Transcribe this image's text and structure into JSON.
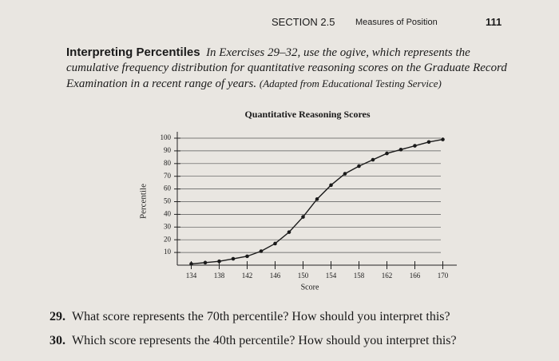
{
  "header": {
    "section": "SECTION 2.5",
    "topic": "Measures of Position",
    "page": "111"
  },
  "intro": {
    "title": "Interpreting Percentiles",
    "text": "In Exercises 29–32, use the ogive, which represents the cumulative frequency distribution for quantitative reasoning scores on the Graduate Record Examination in a recent range of years.",
    "source": "(Adapted from Educational Testing Service)"
  },
  "chart_data": {
    "type": "line",
    "title": "Quantitative Reasoning Scores",
    "x_label": "Score",
    "y_label": "Percentile",
    "x": [
      134,
      136,
      138,
      140,
      142,
      144,
      146,
      148,
      150,
      152,
      154,
      156,
      158,
      160,
      162,
      164,
      166,
      168,
      170
    ],
    "series": [
      {
        "name": "Percentile",
        "color": "#1a1a1a",
        "values": [
          1,
          2,
          3,
          5,
          7,
          11,
          17,
          26,
          38,
          52,
          63,
          72,
          78,
          83,
          88,
          91,
          94,
          97,
          99
        ]
      }
    ],
    "xlim": [
      132,
      172
    ],
    "xticks": [
      134,
      138,
      142,
      146,
      150,
      154,
      158,
      162,
      166,
      170
    ],
    "ylim": [
      0,
      100
    ],
    "yticks": [
      10,
      20,
      30,
      40,
      50,
      60,
      70,
      80,
      90,
      100
    ],
    "grid": true
  },
  "exercises": [
    {
      "number": "29.",
      "text": "What score represents the 70th percentile? How should you interpret this?"
    },
    {
      "number": "30.",
      "text": "Which score represents the 40th percentile? How should you interpret this?"
    }
  ]
}
